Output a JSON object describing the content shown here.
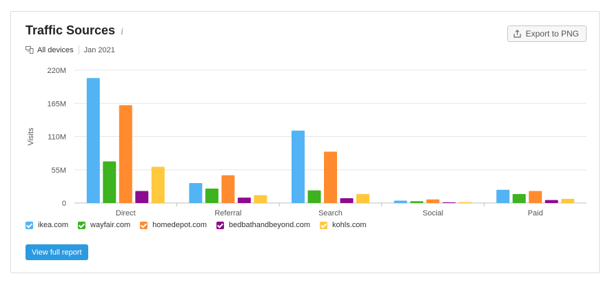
{
  "widget": {
    "title": "Traffic Sources",
    "info_icon": "i",
    "export_label": "Export to PNG",
    "device_label": "All devices",
    "date_label": "Jan 2021",
    "report_button_label": "View full report"
  },
  "colors": {
    "ikea.com": "#52b3f5",
    "wayfair.com": "#3db31f",
    "homedepot.com": "#ff8b2e",
    "bedbathandbeyond.com": "#8c0b8e",
    "kohls.com": "#ffc83d"
  },
  "chart_data": {
    "type": "bar",
    "ylabel": "Visits",
    "xlabel": "",
    "ylim": [
      0,
      220000000
    ],
    "yticks": [
      0,
      55000000,
      110000000,
      165000000,
      220000000
    ],
    "ytick_labels": [
      "0",
      "55M",
      "110M",
      "165M",
      "220M"
    ],
    "categories": [
      "Direct",
      "Referral",
      "Search",
      "Social",
      "Paid"
    ],
    "grid": true,
    "legend_position": "bottom-left",
    "series": [
      {
        "name": "ikea.com",
        "values": [
          207000000,
          33000000,
          120000000,
          4000000,
          22000000
        ]
      },
      {
        "name": "wayfair.com",
        "values": [
          69000000,
          24000000,
          21000000,
          3000000,
          15000000
        ]
      },
      {
        "name": "homedepot.com",
        "values": [
          162000000,
          46000000,
          85000000,
          6000000,
          20000000
        ]
      },
      {
        "name": "bedbathandbeyond.com",
        "values": [
          20000000,
          9000000,
          8000000,
          1000000,
          5000000
        ]
      },
      {
        "name": "kohls.com",
        "values": [
          60000000,
          13000000,
          15000000,
          1500000,
          7000000
        ]
      }
    ]
  }
}
